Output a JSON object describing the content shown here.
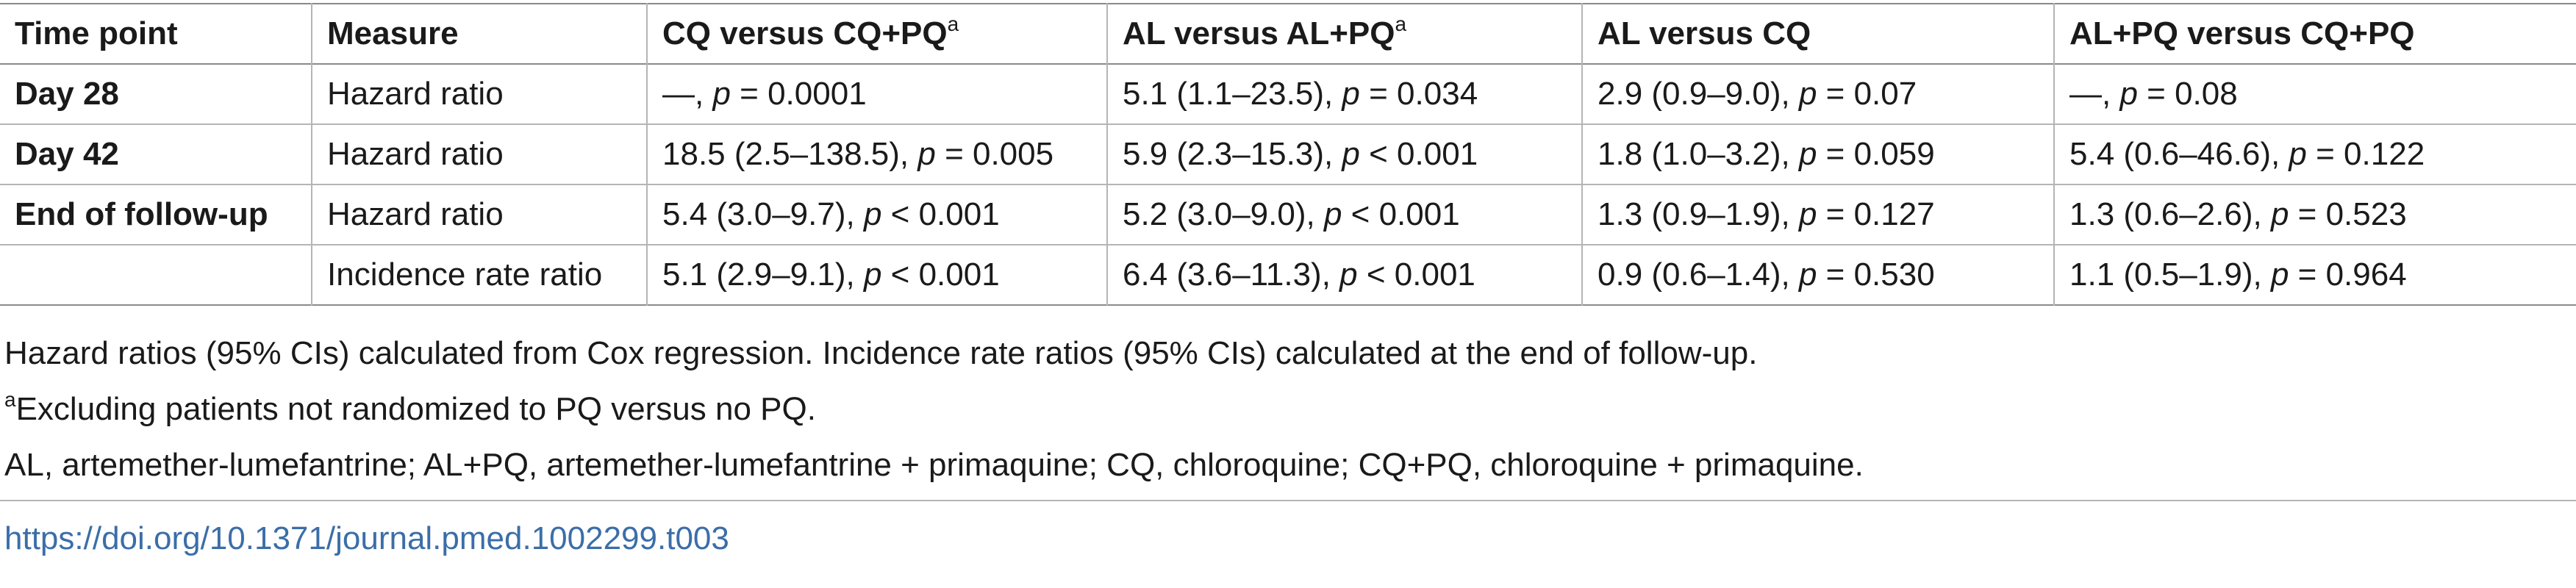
{
  "table": {
    "headers": {
      "time_point": "Time point",
      "measure": "Measure",
      "cq_vs_cqpq": "CQ versus CQ+PQ",
      "cq_vs_cqpq_sup": "a",
      "al_vs_alpq": "AL versus AL+PQ",
      "al_vs_alpq_sup": "a",
      "al_vs_cq": "AL versus CQ",
      "alpq_vs_cqpq": "AL+PQ versus CQ+PQ"
    },
    "p_label": "p",
    "rows": [
      {
        "time_point": "Day 28",
        "measure": "Hazard ratio",
        "c1": {
          "pre": "—, ",
          "op": " = 0.0001"
        },
        "c2": {
          "pre": "5.1 (1.1–23.5), ",
          "op": " = 0.034"
        },
        "c3": {
          "pre": "2.9 (0.9–9.0), ",
          "op": " = 0.07"
        },
        "c4": {
          "pre": "—, ",
          "op": " = 0.08"
        }
      },
      {
        "time_point": "Day 42",
        "measure": "Hazard ratio",
        "c1": {
          "pre": "18.5 (2.5–138.5), ",
          "op": " = 0.005"
        },
        "c2": {
          "pre": "5.9 (2.3–15.3), ",
          "op": " < 0.001"
        },
        "c3": {
          "pre": "1.8 (1.0–3.2), ",
          "op": " = 0.059"
        },
        "c4": {
          "pre": "5.4 (0.6–46.6), ",
          "op": " = 0.122"
        }
      },
      {
        "time_point": "End of follow-up",
        "measure": "Hazard ratio",
        "c1": {
          "pre": "5.4 (3.0–9.7), ",
          "op": " < 0.001"
        },
        "c2": {
          "pre": "5.2 (3.0–9.0), ",
          "op": " < 0.001"
        },
        "c3": {
          "pre": "1.3 (0.9–1.9), ",
          "op": " = 0.127"
        },
        "c4": {
          "pre": "1.3 (0.6–2.6), ",
          "op": " = 0.523"
        }
      },
      {
        "time_point": "",
        "measure": "Incidence rate ratio",
        "c1": {
          "pre": "5.1 (2.9–9.1), ",
          "op": " < 0.001"
        },
        "c2": {
          "pre": "6.4 (3.6–11.3), ",
          "op": " < 0.001"
        },
        "c3": {
          "pre": "0.9 (0.6–1.4), ",
          "op": " = 0.530"
        },
        "c4": {
          "pre": "1.1 (0.5–1.9), ",
          "op": " = 0.964"
        }
      }
    ]
  },
  "notes": {
    "line1": "Hazard ratios (95% CIs) calculated from Cox regression. Incidence rate ratios (95% CIs) calculated at the end of follow-up.",
    "line2_sup": "a",
    "line2": "Excluding patients not randomized to PQ versus no PQ.",
    "line3": "AL, artemether-lumefantrine; AL+PQ, artemether-lumefantrine + primaquine; CQ, chloroquine; CQ+PQ, chloroquine + primaquine."
  },
  "doi": "https://doi.org/10.1371/journal.pmed.1002299.t003"
}
